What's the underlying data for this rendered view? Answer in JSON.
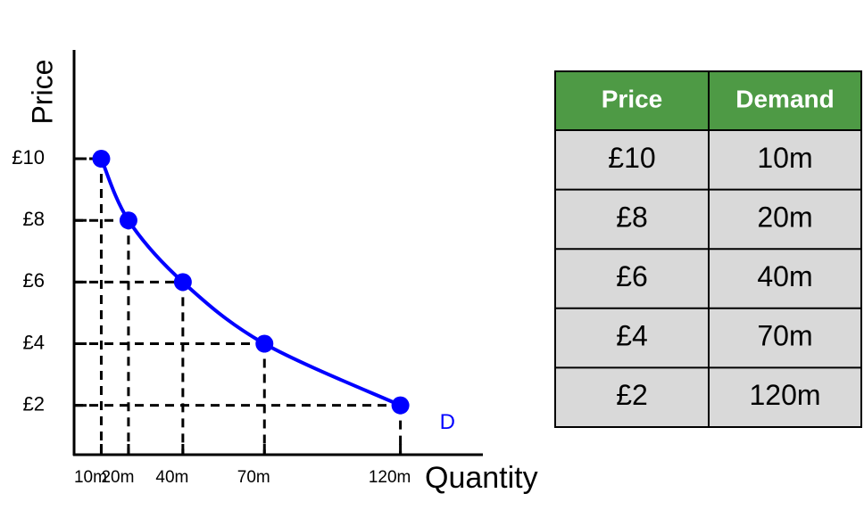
{
  "chart_data": {
    "type": "line",
    "x_label": "Quantity",
    "y_label": "Price",
    "x": [
      10,
      20,
      40,
      70,
      120
    ],
    "series": [
      {
        "name": "D",
        "color": "#0000ff",
        "values": [
          10,
          8,
          6,
          4,
          2
        ]
      }
    ],
    "xlim": [
      0,
      150
    ],
    "ylim": [
      0.4,
      13.5
    ],
    "xticks": [
      {
        "value": 10,
        "label": "10m"
      },
      {
        "value": 20,
        "label": "20m"
      },
      {
        "value": 40,
        "label": "40m"
      },
      {
        "value": 70,
        "label": "70m"
      },
      {
        "value": 120,
        "label": "120m"
      }
    ],
    "yticks": [
      {
        "value": 2,
        "label": "£2"
      },
      {
        "value": 4,
        "label": "£4"
      },
      {
        "value": 6,
        "label": "£6"
      },
      {
        "value": 8,
        "label": "£8"
      },
      {
        "value": 10,
        "label": "£10"
      }
    ],
    "drop_lines": true
  },
  "table": {
    "columns": [
      "Price",
      "Demand"
    ],
    "rows": [
      [
        "£10",
        "10m"
      ],
      [
        "£8",
        "20m"
      ],
      [
        "£6",
        "40m"
      ],
      [
        "£4",
        "70m"
      ],
      [
        "£2",
        "120m"
      ]
    ]
  }
}
